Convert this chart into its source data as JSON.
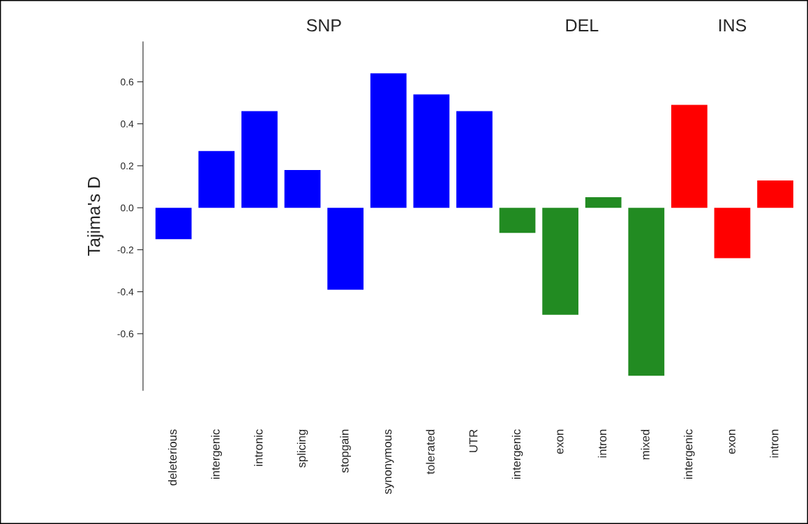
{
  "chart_data": {
    "type": "bar",
    "ylabel": "Tajima's D",
    "categories": [
      "deleterious",
      "intergenic",
      "intronic",
      "splicing",
      "stopgain",
      "synonymous",
      "tolerated",
      "UTR",
      "intergenic",
      "exon",
      "intron",
      "mixed",
      "intergenic",
      "exon",
      "intron"
    ],
    "series": [
      {
        "color": "#0000ff",
        "values": [
          -0.15,
          0.27,
          0.46,
          0.18,
          -0.39,
          0.64,
          0.54,
          0.46,
          null,
          null,
          null,
          null,
          null,
          null,
          null
        ]
      },
      {
        "color": "#228b22",
        "values": [
          null,
          null,
          null,
          null,
          null,
          null,
          null,
          null,
          -0.12,
          -0.51,
          0.05,
          -0.8,
          null,
          null,
          null
        ]
      },
      {
        "color": "#ff0000",
        "values": [
          null,
          null,
          null,
          null,
          null,
          null,
          null,
          null,
          null,
          null,
          null,
          null,
          0.49,
          -0.24,
          0.13
        ]
      }
    ],
    "annotations": [
      "SNP",
      "DEL",
      "INS"
    ],
    "ylim": [
      -0.87,
      0.79
    ],
    "yticks": [
      -0.6,
      -0.4,
      -0.2,
      {
        "value": 0,
        "label": "0.0"
      },
      0.2,
      0.4,
      0.6
    ],
    "grid": false,
    "legend": false
  }
}
